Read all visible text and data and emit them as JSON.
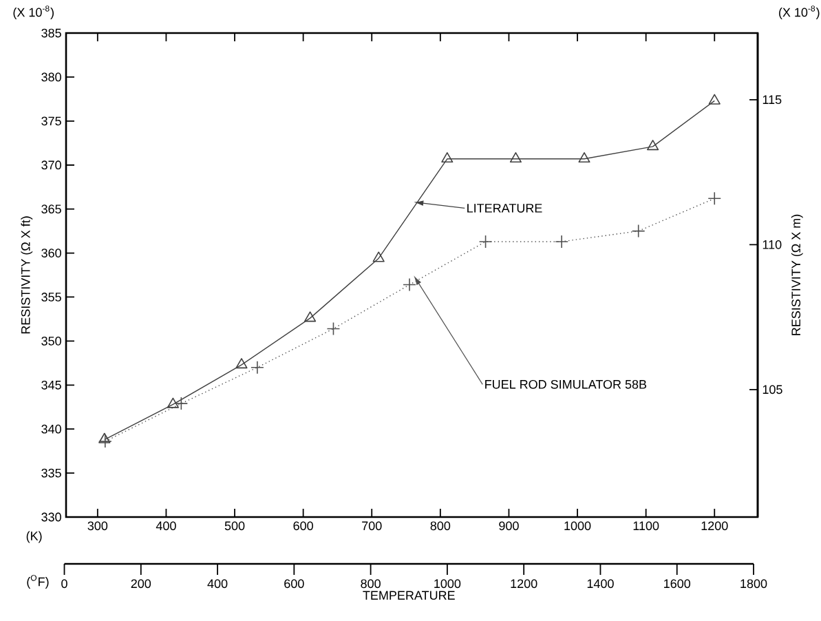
{
  "chart_data": {
    "type": "line",
    "ylabel": "RESISTIVITY (Ω X ft)",
    "y2label": "RESISTIVITY (Ω X m)",
    "x2label": "TEMPERATURE",
    "xlim": [
      254,
      1263
    ],
    "xticks": [
      300,
      400,
      500,
      600,
      700,
      800,
      900,
      1000,
      1100,
      1200
    ],
    "ylim": [
      330,
      385
    ],
    "yticks": [
      330,
      335,
      340,
      345,
      350,
      355,
      360,
      365,
      370,
      375,
      380,
      385
    ],
    "y2lim": [
      100.6,
      117.3
    ],
    "y2ticks": [
      105,
      110,
      115
    ],
    "x2lim": [
      0,
      1800
    ],
    "x2ticks": [
      0,
      200,
      400,
      600,
      800,
      1000,
      1200,
      1400,
      1600,
      1800
    ],
    "series": [
      {
        "name": "LITERATURE",
        "color": "#404040",
        "marker": "triangle",
        "line_style": "solid",
        "x": [
          310,
          410,
          510,
          610,
          710,
          810,
          910,
          1010,
          1110,
          1200
        ],
        "values": [
          338.8,
          342.8,
          347.3,
          352.6,
          359.4,
          370.7,
          370.7,
          370.7,
          372.1,
          377.3
        ]
      },
      {
        "name": "FUEL ROD SIMULATOR 58B",
        "color": "#505050",
        "marker": "cross",
        "line_style": "dotted",
        "x": [
          311,
          422,
          533,
          644,
          755,
          866,
          977,
          1089,
          1200
        ],
        "values": [
          338.6,
          342.9,
          347.0,
          351.4,
          356.4,
          361.3,
          361.3,
          362.5,
          366.2
        ]
      }
    ],
    "annotations": [
      "(X 10$^{-8}$)",
      "(X 10$^{-8}$)",
      "(K)",
      "($^{O}$F)"
    ]
  }
}
